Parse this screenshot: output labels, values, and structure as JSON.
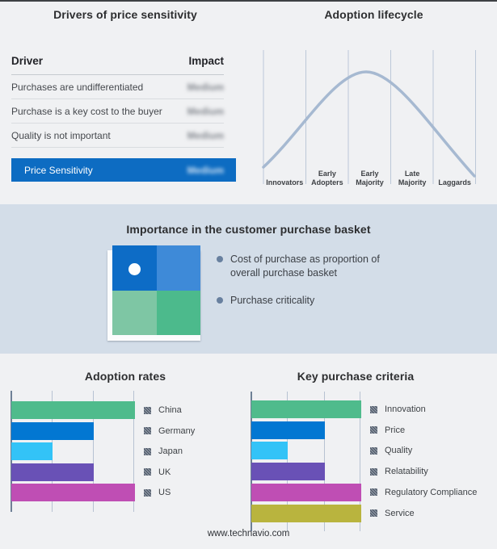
{
  "page": {
    "footer": "www.technavio.com",
    "background_color": "#f0f1f3",
    "band_background_color": "#d3dde8",
    "top_strip_color": "#3e4144"
  },
  "drivers": {
    "title": "Drivers of price sensitivity",
    "headers": [
      "Driver",
      "Impact"
    ],
    "rows": [
      {
        "driver": "Purchases are undifferentiated",
        "impact": "Medium",
        "impact_blurred": true
      },
      {
        "driver": "Purchase is a key cost to the buyer",
        "impact": "Medium",
        "impact_blurred": true
      },
      {
        "driver": "Quality is not important",
        "impact": "Medium",
        "impact_blurred": true
      }
    ],
    "highlight": {
      "driver": "Price Sensitivity",
      "impact": "Medium",
      "impact_blurred": true,
      "row_color": "#0d6cc2"
    }
  },
  "basket": {
    "title": "Importance in the customer purchase basket",
    "bullets": [
      "Cost of purchase as proportion of overall purchase basket",
      "Purchase criticality"
    ],
    "bullet_dot_color": "#68809f",
    "quadrant_colors": [
      "#0d6cc6",
      "#3e8ad8",
      "#7ec6a4",
      "#4cba8c"
    ],
    "quadrant_marker": "white-dot-top-left"
  },
  "chart_data": [
    {
      "type": "line",
      "title": "Adoption lifecycle",
      "subtype": "bell-curve",
      "x": [
        "Innovators",
        "Early Adopters",
        "Early Majority",
        "Late Majority",
        "Laggards"
      ],
      "description": "Smooth adoption bell curve rising from Innovators, peaking near the Early Majority boundary, falling to Laggards",
      "peak_stage": "Early Majority",
      "color": "#a6b9d1",
      "gridlines": "vertical stage separators",
      "ylabel": "",
      "xlabel": ""
    },
    {
      "type": "bar",
      "title": "Adoption rates",
      "orientation": "horizontal",
      "categories": [
        "China",
        "Germany",
        "Japan",
        "UK",
        "US"
      ],
      "values": [
        3,
        2,
        1,
        2,
        3
      ],
      "xlim": [
        0,
        3
      ],
      "value_units": "relative (no numeric axis labels shown)",
      "colors": [
        "#4fbb8c",
        "#0277d2",
        "#33c3f7",
        "#6951b6",
        "#bf4eb4"
      ],
      "legend_position": "right",
      "grid": true
    },
    {
      "type": "bar",
      "title": "Key purchase criteria",
      "orientation": "horizontal",
      "categories": [
        "Innovation",
        "Price",
        "Quality",
        "Relatability",
        "Regulatory Compliance",
        "Service"
      ],
      "values": [
        3,
        2,
        1,
        2,
        3,
        3
      ],
      "xlim": [
        0,
        3
      ],
      "value_units": "relative (no numeric axis labels shown)",
      "colors": [
        "#4fbb8c",
        "#0277d2",
        "#33c3f7",
        "#6951b6",
        "#bf4eb4",
        "#b9b43e"
      ],
      "legend_position": "right",
      "grid": true
    }
  ]
}
